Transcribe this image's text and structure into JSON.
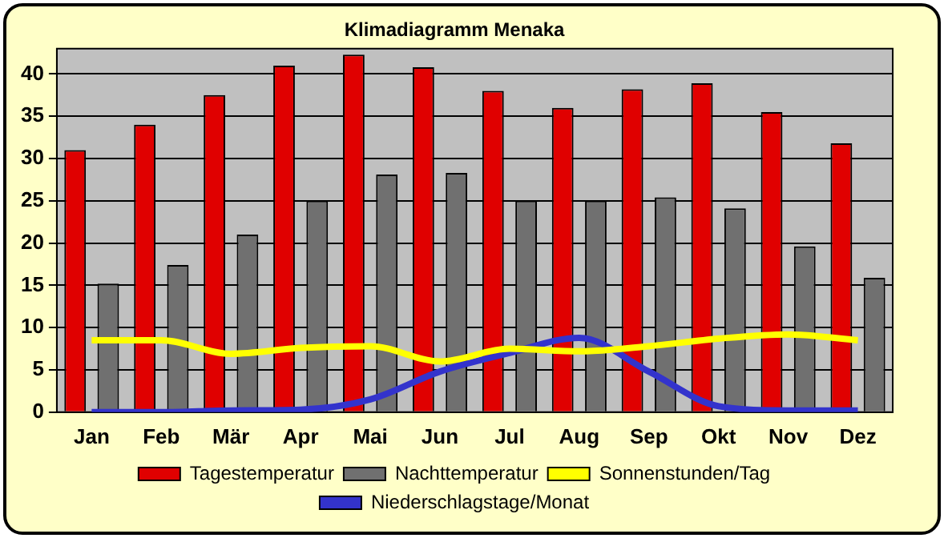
{
  "chart_data": {
    "type": "bar",
    "title": "Klimadiagramm Menaka",
    "categories": [
      "Jan",
      "Feb",
      "Mär",
      "Apr",
      "Mai",
      "Jun",
      "Jul",
      "Aug",
      "Sep",
      "Okt",
      "Nov",
      "Dez"
    ],
    "series": [
      {
        "name": "Tagestemperatur",
        "color": "#e00000",
        "values": [
          31,
          34,
          37.5,
          41,
          42.3,
          40.8,
          38,
          36,
          38.2,
          38.9,
          35.5,
          31.8
        ]
      },
      {
        "name": "Nachttemperatur",
        "color": "#707070",
        "values": [
          15.2,
          17.4,
          21,
          25,
          28.1,
          28.3,
          25,
          25,
          25.4,
          24.1,
          19.6,
          15.9
        ]
      },
      {
        "name": "Sonnenstunden/Tag",
        "type": "line",
        "color": "#ffff00",
        "values": [
          8.5,
          8.5,
          6.9,
          7.6,
          7.8,
          6,
          7.5,
          7.2,
          7.8,
          8.7,
          9.2,
          8.5
        ]
      },
      {
        "name": "Niederschlagstage/Monat",
        "type": "line",
        "color": "#3333cc",
        "values": [
          0,
          0,
          0.2,
          0.3,
          1.5,
          4.8,
          7,
          8.8,
          4.8,
          0.7,
          0.2,
          0.2
        ]
      }
    ],
    "ylim": [
      0,
      43
    ],
    "yticks": [
      0,
      5,
      10,
      15,
      20,
      25,
      30,
      35,
      40
    ],
    "grid": "y",
    "legend": "bottom",
    "marker": "none"
  }
}
